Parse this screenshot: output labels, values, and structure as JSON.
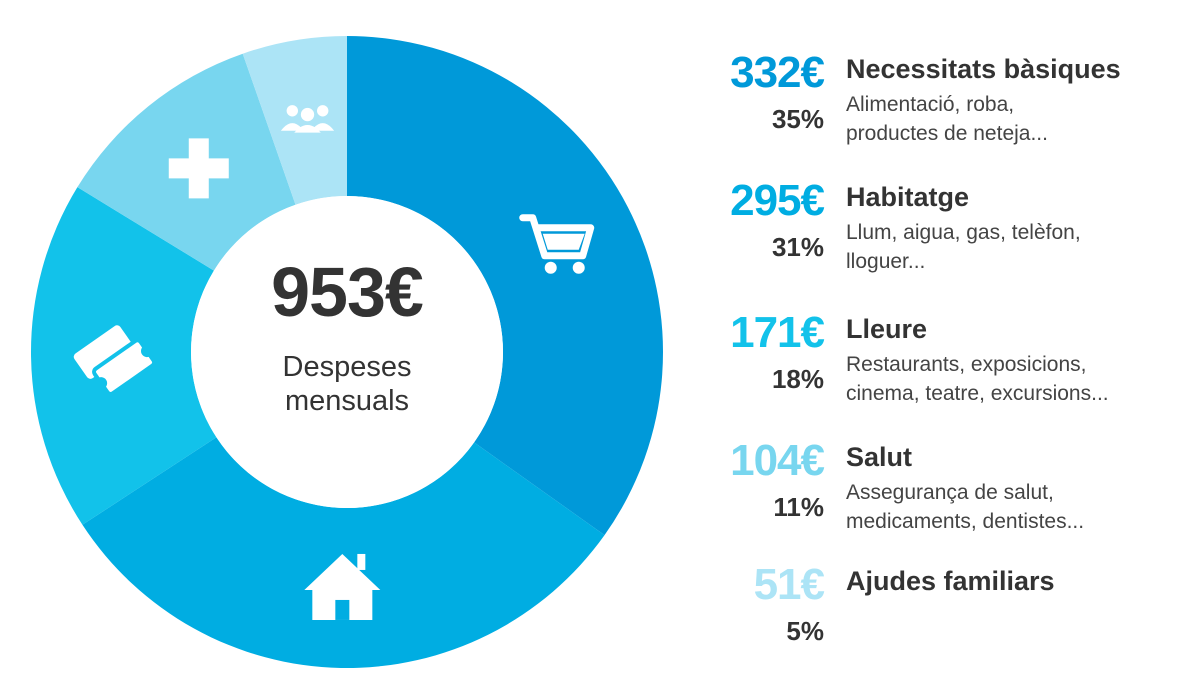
{
  "chart_data": {
    "type": "pie",
    "total": "953€",
    "total_label_lines": [
      "Despeses",
      "mensuals"
    ],
    "slices": [
      {
        "name": "Necessitats bàsiques",
        "amount": "332€",
        "value": 332,
        "percent": "35%",
        "desc": [
          "Alimentació, roba,",
          "productes de neteja..."
        ],
        "color": "#0099d9",
        "text_color": "#0099d9",
        "icon": "shopping-cart-icon"
      },
      {
        "name": "Habitatge",
        "amount": "295€",
        "value": 295,
        "percent": "31%",
        "desc": [
          "Llum, aigua, gas, telèfon,",
          "lloguer..."
        ],
        "color": "#00ade2",
        "text_color": "#00ade2",
        "icon": "house-icon"
      },
      {
        "name": "Lleure",
        "amount": "171€",
        "value": 171,
        "percent": "18%",
        "desc": [
          "Restaurants, exposicions,",
          "cinema, teatre, excursions..."
        ],
        "color": "#12c2ea",
        "text_color": "#12c2ea",
        "icon": "tickets-icon"
      },
      {
        "name": "Salut",
        "amount": "104€",
        "value": 104,
        "percent": "11%",
        "desc": [
          "Assegurança de salut,",
          "medicaments, dentistes..."
        ],
        "color": "#78d6ef",
        "text_color": "#78d6ef",
        "icon": "health-cross-icon"
      },
      {
        "name": "Ajudes familiars",
        "amount": "51€",
        "value": 51,
        "percent": "5%",
        "desc": [],
        "color": "#ace4f6",
        "text_color": "#ace4f6",
        "icon": "family-icon"
      }
    ]
  }
}
